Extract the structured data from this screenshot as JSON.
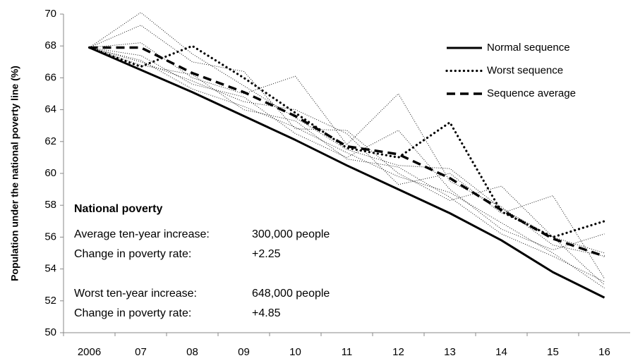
{
  "chart_data": {
    "type": "line",
    "y_label": "Population under the national  poverty line (%)",
    "categories": [
      "2006",
      "07",
      "08",
      "09",
      "10",
      "11",
      "12",
      "13",
      "14",
      "15",
      "16"
    ],
    "ylim": [
      50,
      70
    ],
    "yticks": [
      50,
      52,
      54,
      56,
      58,
      60,
      62,
      64,
      66,
      68,
      70
    ],
    "legend": "top-right",
    "series": [
      {
        "color": "#000000",
        "style": "thin-dotted",
        "values": [
          67.9,
          70.1,
          67.5,
          65.5,
          63.5,
          61.5,
          60.5,
          60.3,
          57.8,
          56.0,
          55.0
        ]
      },
      {
        "color": "#000000",
        "style": "thin-dotted",
        "values": [
          67.9,
          69.3,
          67.0,
          66.4,
          62.8,
          62.7,
          60.0,
          58.3,
          59.2,
          56.0,
          53.0
        ]
      },
      {
        "color": "#000000",
        "style": "thin-dotted",
        "values": [
          67.9,
          68.2,
          66.0,
          65.0,
          66.1,
          61.8,
          65.0,
          59.5,
          57.9,
          55.5,
          54.8
        ]
      },
      {
        "color": "#000000",
        "style": "thin-dotted",
        "values": [
          67.9,
          67.0,
          65.8,
          64.5,
          64.0,
          62.5,
          59.3,
          60.0,
          57.5,
          58.6,
          53.4
        ]
      },
      {
        "color": "#000000",
        "style": "thin-dotted",
        "values": [
          67.9,
          67.4,
          65.6,
          64.8,
          62.5,
          61.0,
          62.7,
          59.0,
          56.5,
          55.2,
          56.2
        ]
      },
      {
        "color": "#000000",
        "style": "thin-dotted",
        "values": [
          67.9,
          67.1,
          65.3,
          64.2,
          62.9,
          61.3,
          59.8,
          58.8,
          56.9,
          55.0,
          52.8
        ]
      },
      {
        "color": "#000000",
        "style": "thin-dotted",
        "values": [
          67.9,
          66.8,
          66.2,
          64.0,
          63.3,
          60.9,
          60.4,
          58.5,
          56.2,
          54.8,
          53.2
        ]
      },
      {
        "name": "Normal sequence",
        "color": "#000000",
        "style": "solid",
        "values": [
          67.9,
          66.5,
          65.1,
          63.6,
          62.1,
          60.5,
          59.0,
          57.5,
          55.8,
          53.8,
          52.2
        ]
      },
      {
        "name": "Worst sequence",
        "color": "#000000",
        "style": "dotted",
        "values": [
          67.9,
          66.7,
          68.0,
          66.0,
          63.8,
          61.6,
          61.0,
          63.2,
          57.6,
          56.0,
          57.0
        ]
      },
      {
        "name": "Sequence average",
        "color": "#000000",
        "style": "dashed",
        "values": [
          67.9,
          67.9,
          66.3,
          65.1,
          63.6,
          61.7,
          61.2,
          59.7,
          57.7,
          55.9,
          54.8
        ]
      }
    ],
    "annotation": {
      "title": "National poverty",
      "rows": [
        [
          "Average ten-year increase:",
          "300,000  people"
        ],
        [
          "Change in poverty rate:",
          "+2.25"
        ],
        [
          "Worst ten-year increase:",
          "648,000  people"
        ],
        [
          "Change in poverty rate:",
          "+4.85"
        ]
      ]
    }
  }
}
